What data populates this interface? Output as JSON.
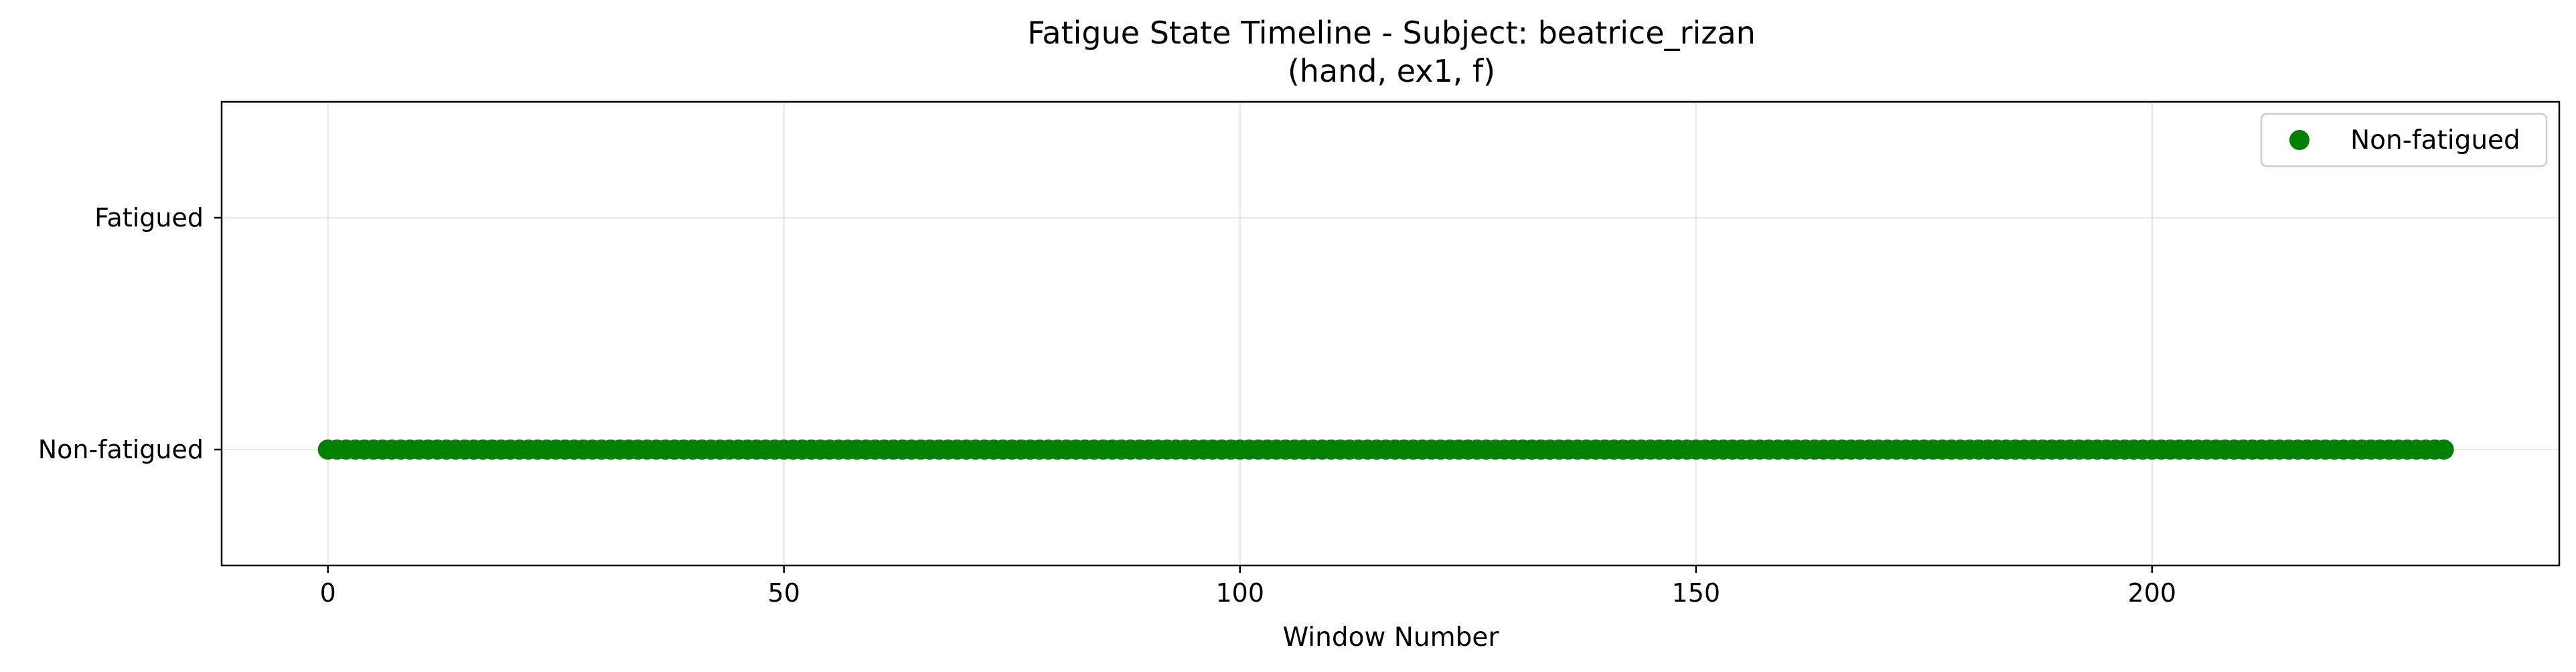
{
  "chart_data": {
    "type": "scatter",
    "title": "Fatigue State Timeline - Subject: beatrice_rizan",
    "subtitle": "(hand, ex1, f)",
    "xlabel": "Window Number",
    "ylabel": "",
    "xlim": [
      -11.65,
      244.65
    ],
    "ylim": [
      -0.5,
      1.5
    ],
    "x_ticks": [
      0,
      50,
      100,
      150,
      200
    ],
    "x_tick_labels": [
      "0",
      "50",
      "100",
      "150",
      "200"
    ],
    "y_ticks": [
      0,
      1
    ],
    "y_tick_labels": [
      "Non-fatigued",
      "Fatigued"
    ],
    "grid": true,
    "legend": {
      "placement": "top-right",
      "entries": [
        "Non-fatigued"
      ]
    },
    "series": [
      {
        "name": "Non-fatigued",
        "color": "#008000",
        "x_start": 0,
        "x_end": 232,
        "x_step": 1,
        "y": 0
      }
    ]
  }
}
